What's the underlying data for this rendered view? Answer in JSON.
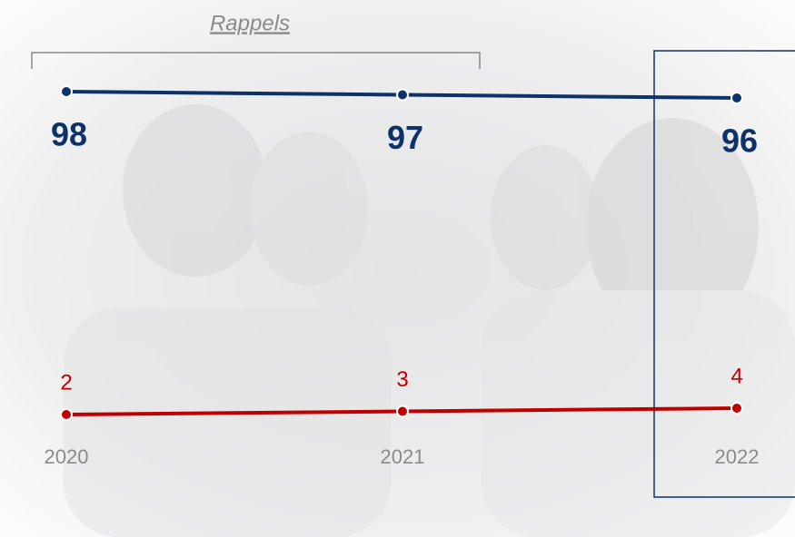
{
  "chart_data": {
    "type": "line",
    "annotation": "Rappels",
    "categories": [
      "2020",
      "2021",
      "2022"
    ],
    "series": [
      {
        "color": "#0d3269",
        "values": [
          98,
          97,
          96
        ]
      },
      {
        "color": "#c00000",
        "values": [
          2,
          3,
          4
        ]
      }
    ]
  }
}
